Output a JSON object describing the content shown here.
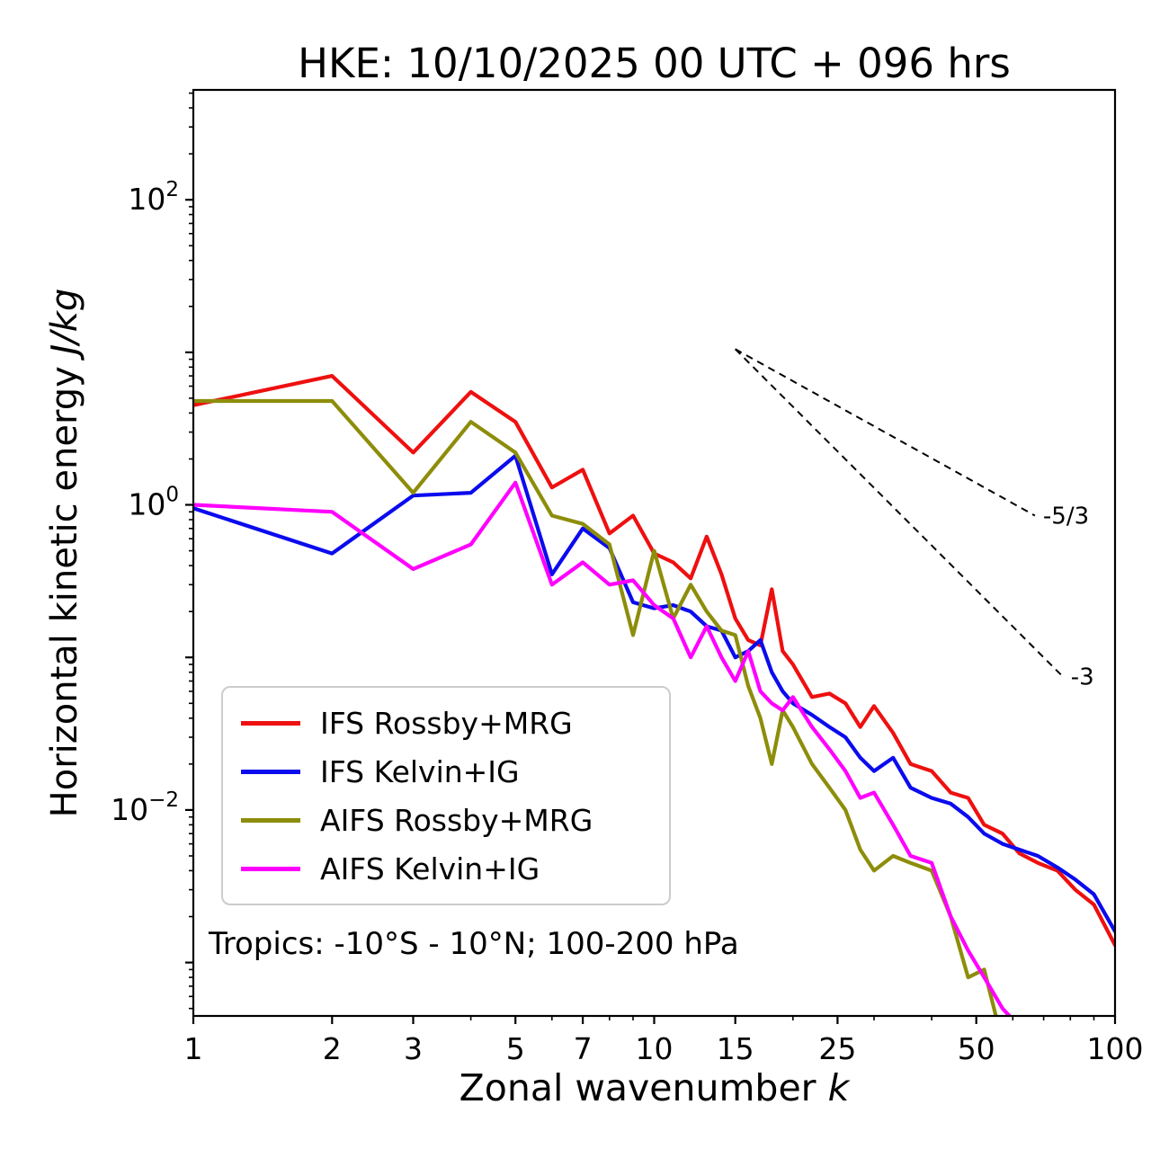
{
  "chart_data": {
    "type": "line",
    "title": "HKE: 10/10/2025 00 UTC + 096 hrs",
    "xlabel": {
      "text": "Zonal wavenumber ",
      "math": "k"
    },
    "ylabel": {
      "text": "Horizontal kinetic energy ",
      "math": "J/kg"
    },
    "annotation": "Tropics: -10°S - 10°N; 100-200 hPa",
    "x_scale": "log",
    "y_scale": "log",
    "xlim": [
      1,
      100
    ],
    "ylim_exponents": [
      -3.35,
      2.72
    ],
    "x_major_ticks": [
      1,
      2,
      3,
      5,
      7,
      10,
      15,
      25,
      50,
      100
    ],
    "x_minor_ticks": [
      4,
      6,
      8,
      9,
      20,
      30,
      40,
      60,
      70,
      80,
      90
    ],
    "y_labeled_exponents": [
      2,
      0,
      -2
    ],
    "grid": false,
    "legend_position": "lower-left",
    "series": [
      {
        "name": "IFS Rossby+MRG",
        "color": "#ee1010",
        "k": [
          1,
          2,
          3,
          4,
          5,
          6,
          7,
          8,
          9,
          10,
          11,
          12,
          13,
          14,
          15,
          16,
          17,
          18,
          19,
          20,
          22,
          24,
          26,
          28,
          30,
          33,
          36,
          40,
          44,
          48,
          52,
          57,
          62,
          68,
          75,
          82,
          90,
          100
        ],
        "values": [
          4.5,
          7.0,
          2.2,
          5.5,
          3.5,
          1.3,
          1.7,
          0.65,
          0.85,
          0.48,
          0.42,
          0.33,
          0.62,
          0.35,
          0.18,
          0.13,
          0.12,
          0.28,
          0.11,
          0.09,
          0.055,
          0.058,
          0.05,
          0.035,
          0.048,
          0.032,
          0.02,
          0.018,
          0.013,
          0.012,
          0.008,
          0.007,
          0.0052,
          0.0045,
          0.004,
          0.003,
          0.0024,
          0.0013
        ]
      },
      {
        "name": "IFS Kelvin+IG",
        "color": "#0b0bee",
        "k": [
          1,
          2,
          3,
          4,
          5,
          6,
          7,
          8,
          9,
          10,
          11,
          12,
          13,
          14,
          15,
          16,
          17,
          18,
          19,
          20,
          22,
          24,
          26,
          28,
          30,
          33,
          36,
          40,
          44,
          48,
          52,
          57,
          62,
          68,
          75,
          82,
          90,
          100
        ],
        "values": [
          0.95,
          0.48,
          1.15,
          1.2,
          2.1,
          0.35,
          0.7,
          0.52,
          0.23,
          0.21,
          0.22,
          0.2,
          0.16,
          0.15,
          0.1,
          0.11,
          0.13,
          0.08,
          0.06,
          0.05,
          0.042,
          0.035,
          0.03,
          0.022,
          0.018,
          0.022,
          0.014,
          0.012,
          0.011,
          0.009,
          0.007,
          0.006,
          0.0055,
          0.005,
          0.0042,
          0.0035,
          0.0028,
          0.0016
        ]
      },
      {
        "name": "AIFS Rossby+MRG",
        "color": "#8d8d0b",
        "k": [
          1,
          2,
          3,
          4,
          5,
          6,
          7,
          8,
          9,
          10,
          11,
          12,
          13,
          14,
          15,
          16,
          17,
          18,
          19,
          20,
          22,
          24,
          26,
          28,
          30,
          33,
          36,
          40,
          44,
          48,
          52,
          57
        ],
        "values": [
          4.8,
          4.8,
          1.2,
          3.5,
          2.2,
          0.85,
          0.75,
          0.55,
          0.14,
          0.5,
          0.18,
          0.3,
          0.2,
          0.15,
          0.14,
          0.065,
          0.04,
          0.02,
          0.045,
          0.035,
          0.02,
          0.014,
          0.01,
          0.0055,
          0.004,
          0.005,
          0.0045,
          0.004,
          0.002,
          0.0008,
          0.0009,
          0.0003
        ]
      },
      {
        "name": "AIFS Kelvin+IG",
        "color": "#ff00ff",
        "k": [
          1,
          2,
          3,
          4,
          5,
          6,
          7,
          8,
          9,
          10,
          11,
          12,
          13,
          14,
          15,
          16,
          17,
          18,
          19,
          20,
          22,
          24,
          26,
          28,
          30,
          33,
          36,
          40,
          44,
          48,
          52,
          57,
          62
        ],
        "values": [
          1.0,
          0.9,
          0.38,
          0.55,
          1.4,
          0.3,
          0.42,
          0.3,
          0.32,
          0.22,
          0.18,
          0.1,
          0.16,
          0.1,
          0.07,
          0.11,
          0.06,
          0.05,
          0.045,
          0.055,
          0.035,
          0.025,
          0.018,
          0.012,
          0.013,
          0.008,
          0.005,
          0.0045,
          0.002,
          0.0012,
          0.0008,
          0.0005,
          0.00038
        ]
      }
    ],
    "reference_lines": [
      {
        "from": [
          15,
          10.5
        ],
        "to": [
          67,
          0.85
        ],
        "label": "-5/3"
      },
      {
        "from": [
          15,
          10.5
        ],
        "to": [
          77,
          0.075
        ],
        "label": "-3"
      }
    ]
  }
}
